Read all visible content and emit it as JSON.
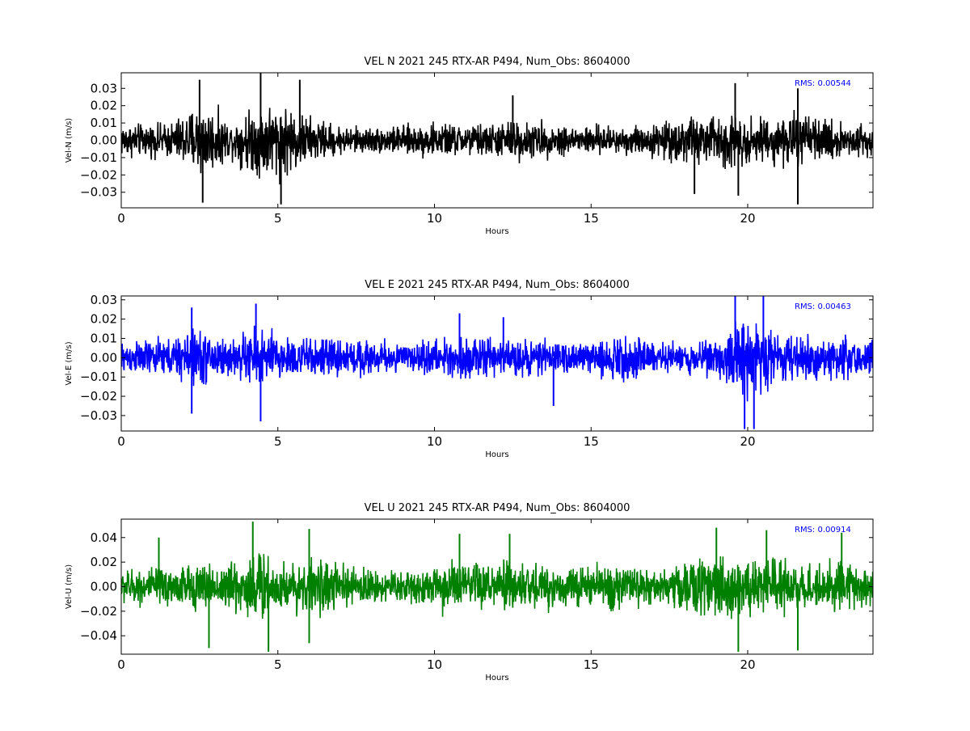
{
  "chart_data": [
    {
      "type": "line",
      "title": "VEL N 2021 245 RTX-AR  P494, Num_Obs: 8604000",
      "xlabel": "Hours",
      "ylabel": "Vel-N (m/s)",
      "xlim": [
        0,
        24
      ],
      "ylim": [
        -0.039,
        0.039
      ],
      "xticks": [
        0,
        5,
        10,
        15,
        20
      ],
      "xtick_labels": [
        "0",
        "5",
        "10",
        "15",
        "20"
      ],
      "yticks": [
        -0.03,
        -0.02,
        -0.01,
        0.0,
        0.01,
        0.02,
        0.03
      ],
      "ytick_labels": [
        "−0.03",
        "−0.02",
        "−0.01",
        "0.00",
        "0.01",
        "0.02",
        "0.03"
      ],
      "annotation": "RMS:  0.00544",
      "annotation_color": "#0000ff",
      "line_color": "#000000",
      "grid": false,
      "envelope": {
        "hours": [
          0,
          1,
          1.5,
          2,
          2.5,
          3,
          3.5,
          4,
          4.5,
          5,
          5.5,
          6,
          6.5,
          7,
          8,
          9,
          10,
          11,
          12,
          12.5,
          13,
          14,
          15,
          16,
          17,
          17.5,
          18,
          19,
          19.5,
          20,
          21,
          21.5,
          22,
          23,
          24
        ],
        "amplitude": [
          0.013,
          0.012,
          0.013,
          0.02,
          0.028,
          0.022,
          0.013,
          0.022,
          0.029,
          0.028,
          0.025,
          0.018,
          0.014,
          0.011,
          0.01,
          0.011,
          0.013,
          0.012,
          0.013,
          0.016,
          0.014,
          0.012,
          0.011,
          0.011,
          0.012,
          0.015,
          0.018,
          0.019,
          0.022,
          0.017,
          0.017,
          0.022,
          0.016,
          0.014,
          0.014
        ]
      },
      "spikes": [
        {
          "x": 2.5,
          "y": 0.035
        },
        {
          "x": 2.6,
          "y": -0.036
        },
        {
          "x": 4.45,
          "y": 0.039
        },
        {
          "x": 5.1,
          "y": -0.037
        },
        {
          "x": 5.7,
          "y": 0.035
        },
        {
          "x": 12.5,
          "y": 0.026
        },
        {
          "x": 18.3,
          "y": -0.031
        },
        {
          "x": 19.6,
          "y": 0.033
        },
        {
          "x": 19.7,
          "y": -0.032
        },
        {
          "x": 21.6,
          "y": -0.037
        },
        {
          "x": 21.6,
          "y": 0.03
        }
      ]
    },
    {
      "type": "line",
      "title": "VEL E 2021 245 RTX-AR  P494, Num_Obs: 8604000",
      "xlabel": "Hours",
      "ylabel": "Vel-E (m/s)",
      "xlim": [
        0,
        24
      ],
      "ylim": [
        -0.038,
        0.032
      ],
      "xticks": [
        0,
        5,
        10,
        15,
        20
      ],
      "xtick_labels": [
        "0",
        "5",
        "10",
        "15",
        "20"
      ],
      "yticks": [
        -0.03,
        -0.02,
        -0.01,
        0.0,
        0.01,
        0.02,
        0.03
      ],
      "ytick_labels": [
        "−0.03",
        "−0.02",
        "−0.01",
        "0.00",
        "0.01",
        "0.02",
        "0.03"
      ],
      "annotation": "RMS:  0.00463",
      "annotation_color": "#0000ff",
      "line_color": "#0000ff",
      "grid": false,
      "envelope": {
        "hours": [
          0,
          1,
          1.5,
          2,
          2.5,
          3,
          3.5,
          4,
          4.5,
          5,
          6,
          7,
          8,
          9,
          10,
          10.5,
          11,
          12,
          13,
          14,
          15,
          15.5,
          16,
          16.5,
          17,
          18,
          19,
          19.5,
          20,
          20.5,
          21,
          22,
          23,
          24
        ],
        "amplitude": [
          0.011,
          0.012,
          0.013,
          0.017,
          0.02,
          0.016,
          0.012,
          0.018,
          0.021,
          0.016,
          0.013,
          0.013,
          0.012,
          0.01,
          0.011,
          0.015,
          0.014,
          0.012,
          0.012,
          0.011,
          0.01,
          0.013,
          0.015,
          0.014,
          0.011,
          0.01,
          0.012,
          0.024,
          0.027,
          0.022,
          0.016,
          0.015,
          0.015,
          0.014
        ]
      },
      "spikes": [
        {
          "x": 2.25,
          "y": 0.026
        },
        {
          "x": 2.25,
          "y": -0.029
        },
        {
          "x": 4.3,
          "y": 0.028
        },
        {
          "x": 4.45,
          "y": -0.033
        },
        {
          "x": 10.8,
          "y": 0.023
        },
        {
          "x": 12.2,
          "y": 0.021
        },
        {
          "x": 13.8,
          "y": -0.025
        },
        {
          "x": 19.6,
          "y": 0.032
        },
        {
          "x": 19.9,
          "y": -0.037
        },
        {
          "x": 20.2,
          "y": -0.037
        },
        {
          "x": 20.5,
          "y": 0.032
        }
      ]
    },
    {
      "type": "line",
      "title": "VEL U 2021 245 RTX-AR  P494, Num_Obs: 8604000",
      "xlabel": "Hours",
      "ylabel": "Vel-U (m/s)",
      "xlim": [
        0,
        24
      ],
      "ylim": [
        -0.055,
        0.055
      ],
      "xticks": [
        0,
        5,
        10,
        15,
        20
      ],
      "xtick_labels": [
        "0",
        "5",
        "10",
        "15",
        "20"
      ],
      "yticks": [
        -0.04,
        -0.02,
        0.0,
        0.02,
        0.04
      ],
      "ytick_labels": [
        "−0.04",
        "−0.02",
        "0.00",
        "0.02",
        "0.04"
      ],
      "annotation": "RMS:  0.00914",
      "annotation_color": "#0000ff",
      "line_color": "#008000",
      "grid": false,
      "envelope": {
        "hours": [
          0,
          1,
          2,
          3,
          3.5,
          4,
          4.5,
          5,
          5.5,
          6,
          7,
          8,
          9,
          10,
          10.5,
          11,
          12,
          12.5,
          13,
          14,
          15,
          16,
          17,
          18,
          18.5,
          19,
          19.5,
          20,
          20.5,
          21,
          22,
          23,
          24
        ],
        "amplitude": [
          0.018,
          0.02,
          0.024,
          0.024,
          0.028,
          0.035,
          0.04,
          0.03,
          0.025,
          0.03,
          0.023,
          0.018,
          0.018,
          0.022,
          0.028,
          0.026,
          0.025,
          0.03,
          0.026,
          0.02,
          0.024,
          0.024,
          0.018,
          0.025,
          0.032,
          0.036,
          0.036,
          0.03,
          0.028,
          0.03,
          0.024,
          0.025,
          0.022
        ]
      },
      "spikes": [
        {
          "x": 1.2,
          "y": 0.04
        },
        {
          "x": 2.8,
          "y": -0.05
        },
        {
          "x": 4.2,
          "y": 0.053
        },
        {
          "x": 4.7,
          "y": -0.053
        },
        {
          "x": 6.0,
          "y": 0.047
        },
        {
          "x": 6.0,
          "y": -0.046
        },
        {
          "x": 10.8,
          "y": 0.043
        },
        {
          "x": 12.4,
          "y": 0.043
        },
        {
          "x": 19.0,
          "y": 0.048
        },
        {
          "x": 19.7,
          "y": -0.053
        },
        {
          "x": 20.6,
          "y": 0.046
        },
        {
          "x": 21.6,
          "y": -0.052
        },
        {
          "x": 23.0,
          "y": 0.044
        }
      ]
    }
  ]
}
